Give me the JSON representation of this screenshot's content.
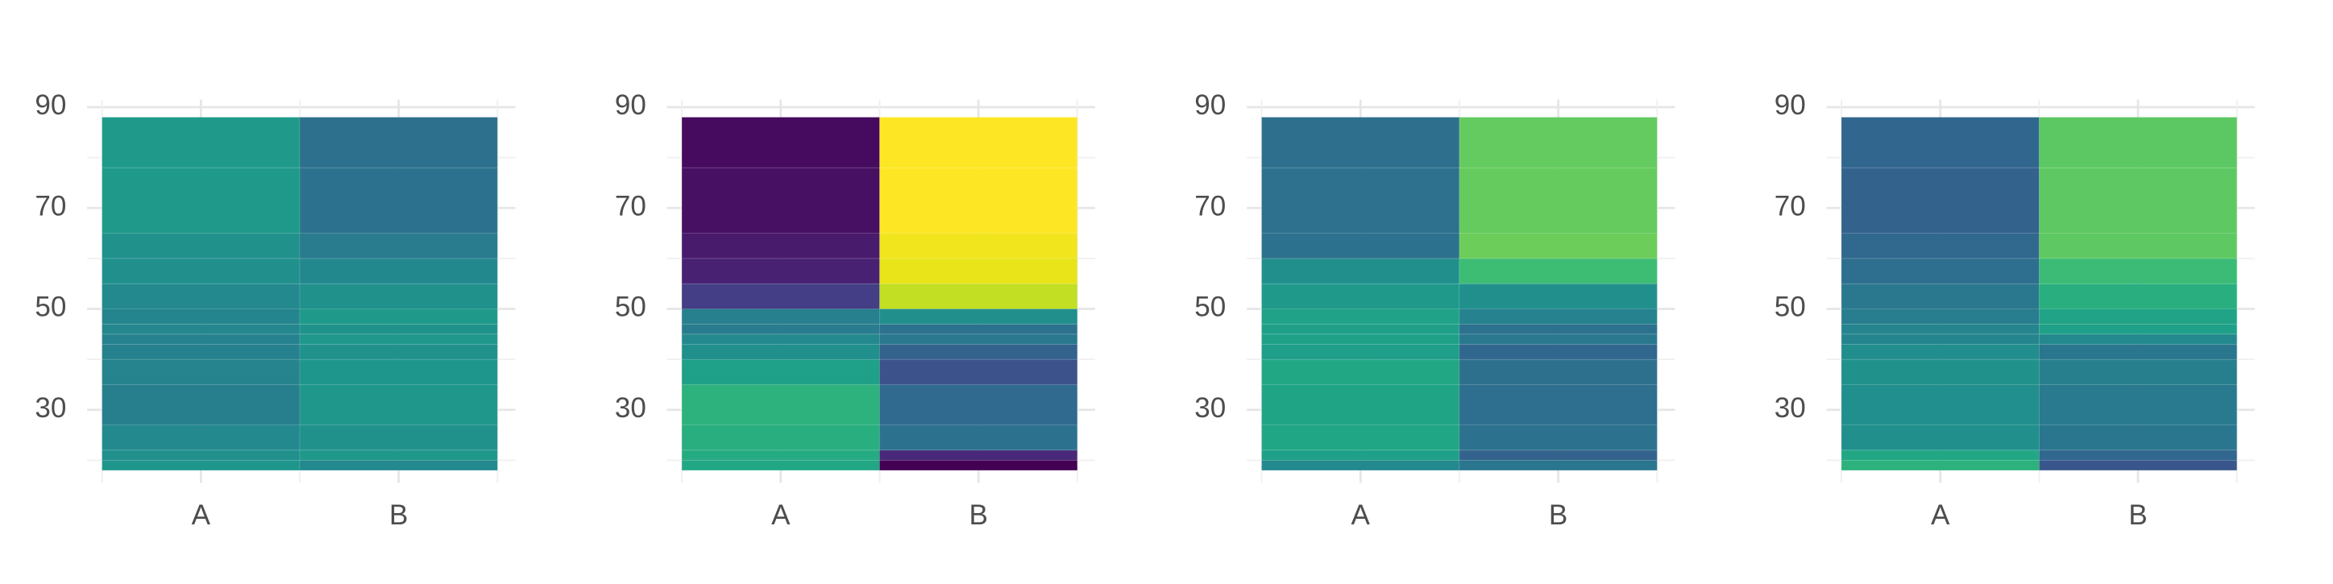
{
  "chart_data": [
    {
      "type": "tile",
      "categories": [
        "A",
        "B"
      ],
      "breaks": [
        18,
        20,
        22,
        27,
        35,
        40,
        43,
        45,
        47,
        50,
        55,
        60,
        65,
        78,
        88
      ],
      "colors": [
        [
          "#1f968b",
          "#21908d",
          "#23898e",
          "#277f8e",
          "#25848e",
          "#26818e",
          "#26828e",
          "#24878e",
          "#25858e",
          "#23898e",
          "#21908d",
          "#21918c",
          "#1f9a8a",
          "#1f9a8a"
        ],
        [
          "#23898e",
          "#1f988b",
          "#21918c",
          "#1f988b",
          "#1f968b",
          "#21918c",
          "#1f988b",
          "#20928c",
          "#1f9a8a",
          "#21918c",
          "#23888e",
          "#297b8e",
          "#2c728e",
          "#2d708e"
        ]
      ],
      "ylim": [
        15.5,
        91.5
      ],
      "yticks": [
        30,
        50,
        70,
        90
      ],
      "y_minor_ticks": [
        20,
        40,
        60,
        80
      ],
      "grid": true
    },
    {
      "type": "tile",
      "categories": [
        "A",
        "B"
      ],
      "breaks": [
        18,
        20,
        22,
        27,
        35,
        40,
        43,
        45,
        47,
        50,
        55,
        60,
        65,
        78,
        88
      ],
      "colors": [
        [
          "#22a785",
          "#25ab82",
          "#29af7f",
          "#2db27d",
          "#1fa088",
          "#21908d",
          "#23898e",
          "#287c8e",
          "#27808e",
          "#433e85",
          "#482173",
          "#481b6d",
          "#471063",
          "#460b5e"
        ],
        [
          "#440154",
          "#482878",
          "#2c728e",
          "#306a8e",
          "#3b528b",
          "#33628d",
          "#2a788e",
          "#2c728e",
          "#21908d",
          "#c2df23",
          "#e8e419",
          "#f1e51d",
          "#fde725",
          "#fde725"
        ]
      ],
      "ylim": [
        15.5,
        91.5
      ],
      "yticks": [
        30,
        50,
        70,
        90
      ],
      "y_minor_ticks": [
        20,
        40,
        60,
        80
      ],
      "grid": true
    },
    {
      "type": "tile",
      "categories": [
        "A",
        "B"
      ],
      "breaks": [
        18,
        20,
        22,
        27,
        35,
        40,
        43,
        45,
        47,
        50,
        55,
        60,
        65,
        78,
        88
      ],
      "colors": [
        [
          "#23898e",
          "#1fa088",
          "#21a685",
          "#20a486",
          "#22a785",
          "#1f9e89",
          "#1fa188",
          "#1f9f88",
          "#1fa287",
          "#1f9a8a",
          "#21908d",
          "#2c728e",
          "#2d718e",
          "#2e6f8e"
        ],
        [
          "#2a768e",
          "#33638d",
          "#2c728e",
          "#2e6e8e",
          "#2d708e",
          "#31668e",
          "#2a788e",
          "#2c718e",
          "#26828e",
          "#21908d",
          "#3dbc74",
          "#6ccd5a",
          "#65cb5e",
          "#63cb5f"
        ]
      ],
      "ylim": [
        15.5,
        91.5
      ],
      "yticks": [
        30,
        50,
        70,
        90
      ],
      "y_minor_ticks": [
        20,
        40,
        60,
        80
      ],
      "grid": true
    },
    {
      "type": "tile",
      "categories": [
        "A",
        "B"
      ],
      "breaks": [
        18,
        20,
        22,
        27,
        35,
        40,
        43,
        45,
        47,
        50,
        55,
        60,
        65,
        78,
        88
      ],
      "colors": [
        [
          "#2db27d",
          "#22a785",
          "#21908d",
          "#218f8d",
          "#21918c",
          "#228d8d",
          "#25858e",
          "#25848e",
          "#287d8e",
          "#2a788e",
          "#2e6e8e",
          "#31688e",
          "#33638d",
          "#31668e"
        ],
        [
          "#39568c",
          "#31668e",
          "#2a768e",
          "#297a8e",
          "#277f8e",
          "#2a768e",
          "#23898e",
          "#1fa088",
          "#20a386",
          "#29af7f",
          "#3bbb75",
          "#5ec962",
          "#5ec962",
          "#5cc863"
        ]
      ],
      "ylim": [
        15.5,
        91.5
      ],
      "yticks": [
        30,
        50,
        70,
        90
      ],
      "y_minor_ticks": [
        20,
        40,
        60,
        80
      ],
      "grid": true
    }
  ]
}
